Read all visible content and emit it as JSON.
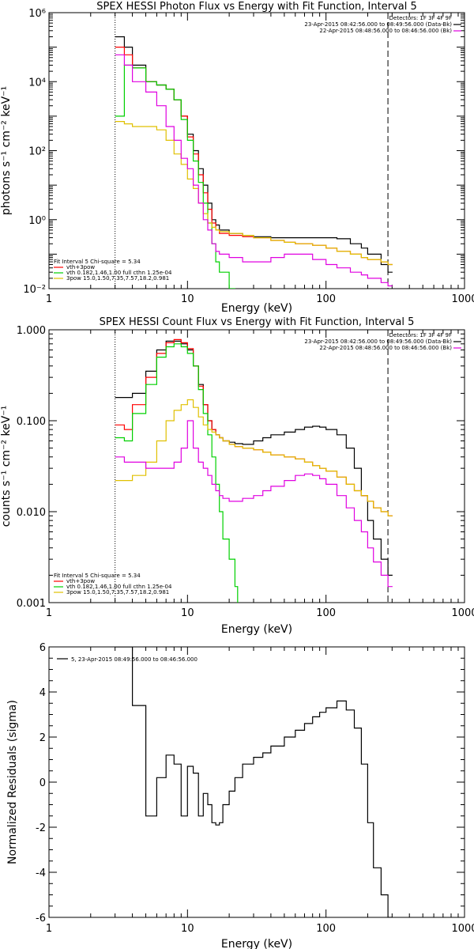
{
  "chart_data": [
    {
      "type": "line",
      "title": "SPEX HESSI Photon Flux vs Energy with Fit Function, Interval 5",
      "xlabel": "Energy (keV)",
      "ylabel": "photons s⁻¹ cm⁻² keV⁻¹",
      "xscale": "log",
      "yscale": "log",
      "xlim": [
        1,
        1000
      ],
      "ylim": [
        0.01,
        1000000
      ],
      "xticks": [
        {
          "v": 1,
          "label": "1"
        },
        {
          "v": 10,
          "label": "10"
        },
        {
          "v": 100,
          "label": "100"
        },
        {
          "v": 1000,
          "label": "1000"
        }
      ],
      "yticks": [
        {
          "v": 0.01,
          "label": "10⁻²"
        },
        {
          "v": 1,
          "label": "10⁰"
        },
        {
          "v": 100,
          "label": "10²"
        },
        {
          "v": 10000,
          "label": "10⁴"
        },
        {
          "v": 1000000,
          "label": "10⁶"
        }
      ],
      "vlines": [
        {
          "x": 3,
          "style": "dotted"
        },
        {
          "x": 280,
          "style": "dashed"
        }
      ],
      "header_lines": [
        "Detectors: 1F 3F 4F 9F",
        "23-Apr-2015 08:42:56.000 to 08:49:56.000 (Data-Bk)",
        "22-Apr-2015 08:48:56.000 to 08:46:56.000 (Bk)"
      ],
      "fit_lines": [
        "Fit Interval 5   Chi-square = 5.34",
        "vth+3pow",
        "vth 0.182,1.46,1.00  full cthn 1.25e-04",
        "3pow 15.0,1.50,7.35,7.57,18.2,0.981"
      ],
      "legend_position": "top-right",
      "series": [
        {
          "key": "data",
          "color": "#000000",
          "x": [
            3,
            3.5,
            4,
            5,
            6,
            7,
            8,
            9,
            10,
            11,
            12,
            13,
            14,
            15,
            16,
            17,
            20,
            25,
            30,
            40,
            50,
            60,
            80,
            100,
            120,
            150,
            180,
            200,
            250,
            280
          ],
          "y": [
            200000,
            100000,
            30000,
            10000,
            8000,
            6000,
            3000,
            1000,
            300,
            100,
            30,
            10,
            3,
            1,
            0.7,
            0.5,
            0.4,
            0.35,
            0.32,
            0.3,
            0.3,
            0.3,
            0.3,
            0.3,
            0.28,
            0.2,
            0.15,
            0.1,
            0.05,
            0.03
          ]
        },
        {
          "key": "fit_total",
          "color": "#ff0000",
          "x": [
            3,
            3.5,
            4,
            5,
            6,
            7,
            8,
            9,
            10,
            11,
            12,
            13,
            14,
            15,
            16,
            17,
            20,
            25,
            30,
            40,
            50,
            60,
            80,
            100,
            120,
            150,
            180,
            200,
            250,
            280
          ],
          "y": [
            100000,
            60000,
            25000,
            10000,
            8000,
            6000,
            3000,
            1000,
            250,
            80,
            20,
            6,
            2,
            0.8,
            0.5,
            0.4,
            0.35,
            0.32,
            0.3,
            0.25,
            0.22,
            0.2,
            0.18,
            0.15,
            0.12,
            0.1,
            0.08,
            0.07,
            0.06,
            0.05
          ]
        },
        {
          "key": "vth",
          "color": "#00d000",
          "x": [
            3,
            3.5,
            4,
            5,
            6,
            7,
            8,
            9,
            10,
            11,
            12,
            13,
            14,
            15,
            16,
            17,
            20,
            22
          ],
          "y": [
            1000,
            30000,
            25000,
            10000,
            8000,
            6000,
            3000,
            800,
            200,
            50,
            12,
            3,
            0.8,
            0.2,
            0.06,
            0.03,
            0.01,
            0.003
          ]
        },
        {
          "key": "3pow",
          "color": "#e0c000",
          "x": [
            3,
            3.5,
            4,
            5,
            6,
            7,
            8,
            9,
            10,
            11,
            12,
            13,
            14,
            15,
            16,
            17,
            20,
            25,
            30,
            40,
            50,
            60,
            80,
            100,
            120,
            150,
            180,
            200,
            250,
            280
          ],
          "y": [
            700,
            600,
            500,
            500,
            400,
            200,
            80,
            40,
            15,
            8,
            3,
            1.5,
            0.8,
            0.6,
            0.5,
            0.45,
            0.4,
            0.35,
            0.3,
            0.25,
            0.22,
            0.2,
            0.18,
            0.15,
            0.12,
            0.1,
            0.08,
            0.07,
            0.06,
            0.05
          ]
        },
        {
          "key": "background",
          "color": "#e000e0",
          "x": [
            3,
            3.5,
            4,
            5,
            6,
            7,
            8,
            9,
            10,
            11,
            12,
            13,
            14,
            15,
            16,
            17,
            20,
            25,
            30,
            40,
            50,
            60,
            80,
            100,
            120,
            150,
            180,
            200,
            250,
            280
          ],
          "y": [
            60000,
            30000,
            10000,
            5000,
            2000,
            500,
            200,
            60,
            30,
            10,
            3,
            1,
            0.5,
            0.2,
            0.12,
            0.1,
            0.08,
            0.06,
            0.06,
            0.08,
            0.1,
            0.1,
            0.07,
            0.05,
            0.04,
            0.03,
            0.025,
            0.02,
            0.015,
            0.012
          ]
        }
      ]
    },
    {
      "type": "line",
      "title": "SPEX HESSI Count Flux vs Energy with Fit Function, Interval 5",
      "xlabel": "Energy (keV)",
      "ylabel": "counts s⁻¹ cm⁻² keV⁻¹",
      "xscale": "log",
      "yscale": "log",
      "xlim": [
        1,
        1000
      ],
      "ylim": [
        0.001,
        1
      ],
      "xticks": [
        {
          "v": 1,
          "label": "1"
        },
        {
          "v": 10,
          "label": "10"
        },
        {
          "v": 100,
          "label": "100"
        },
        {
          "v": 1000,
          "label": "1000"
        }
      ],
      "yticks": [
        {
          "v": 0.001,
          "label": "0.001"
        },
        {
          "v": 0.01,
          "label": "0.010"
        },
        {
          "v": 0.1,
          "label": "0.100"
        },
        {
          "v": 1,
          "label": "1.000"
        }
      ],
      "vlines": [
        {
          "x": 3,
          "style": "dotted"
        },
        {
          "x": 280,
          "style": "dashed"
        }
      ],
      "header_lines": [
        "Detectors: 1F 3F 4F 9F",
        "23-Apr-2015 08:42:56.000 to 08:49:56.000 (Data-Bk)",
        "22-Apr-2015 08:48:56.000 to 08:46:56.000 (Bk)"
      ],
      "fit_lines": [
        "Fit Interval 5   Chi-square = 5.34",
        "vth+3pow",
        "vth 0.182,1.46,1.00  full cthn 1.25e-04",
        "3pow 15.0,1.50,7.35,7.57,18.2,0.981"
      ],
      "legend_position": "top-right",
      "series": [
        {
          "key": "data",
          "color": "#000000",
          "x": [
            3,
            3.5,
            4,
            5,
            6,
            7,
            8,
            9,
            10,
            11,
            12,
            13,
            14,
            15,
            16,
            17,
            18,
            20,
            22,
            25,
            30,
            35,
            40,
            50,
            60,
            70,
            80,
            90,
            100,
            120,
            140,
            160,
            180,
            200,
            220,
            250,
            280
          ],
          "y": [
            0.18,
            0.18,
            0.2,
            0.35,
            0.6,
            0.75,
            0.75,
            0.7,
            0.6,
            0.4,
            0.25,
            0.15,
            0.1,
            0.08,
            0.07,
            0.065,
            0.06,
            0.058,
            0.056,
            0.055,
            0.06,
            0.065,
            0.07,
            0.075,
            0.08,
            0.085,
            0.087,
            0.085,
            0.08,
            0.07,
            0.05,
            0.03,
            0.015,
            0.008,
            0.005,
            0.003,
            0.002
          ]
        },
        {
          "key": "fit_total",
          "color": "#ff0000",
          "x": [
            3,
            3.5,
            4,
            5,
            6,
            7,
            8,
            9,
            10,
            11,
            12,
            13,
            14,
            15,
            16,
            17,
            18,
            20,
            22,
            25,
            30,
            35,
            40,
            50,
            60,
            70,
            80,
            90,
            100,
            120,
            140,
            160,
            180,
            200,
            220,
            250,
            280
          ],
          "y": [
            0.09,
            0.08,
            0.15,
            0.3,
            0.55,
            0.72,
            0.78,
            0.72,
            0.62,
            0.4,
            0.24,
            0.15,
            0.1,
            0.08,
            0.07,
            0.065,
            0.06,
            0.055,
            0.052,
            0.05,
            0.048,
            0.045,
            0.042,
            0.04,
            0.038,
            0.035,
            0.032,
            0.03,
            0.028,
            0.024,
            0.02,
            0.017,
            0.015,
            0.013,
            0.011,
            0.01,
            0.009
          ]
        },
        {
          "key": "vth",
          "color": "#00d000",
          "x": [
            3,
            3.5,
            4,
            5,
            6,
            7,
            8,
            9,
            10,
            11,
            12,
            13,
            14,
            15,
            16,
            17,
            18,
            20,
            22,
            23
          ],
          "y": [
            0.065,
            0.06,
            0.12,
            0.25,
            0.5,
            0.65,
            0.7,
            0.65,
            0.55,
            0.4,
            0.22,
            0.12,
            0.07,
            0.04,
            0.02,
            0.01,
            0.005,
            0.003,
            0.0015,
            0.0008
          ]
        },
        {
          "key": "3pow",
          "color": "#e0c000",
          "x": [
            3,
            3.5,
            4,
            5,
            6,
            7,
            8,
            9,
            10,
            11,
            12,
            13,
            14,
            15,
            16,
            17,
            18,
            20,
            22,
            25,
            30,
            35,
            40,
            50,
            60,
            70,
            80,
            90,
            100,
            120,
            140,
            160,
            180,
            200,
            220,
            250,
            280
          ],
          "y": [
            0.022,
            0.022,
            0.025,
            0.035,
            0.06,
            0.1,
            0.13,
            0.15,
            0.17,
            0.14,
            0.11,
            0.09,
            0.08,
            0.075,
            0.07,
            0.065,
            0.06,
            0.055,
            0.052,
            0.05,
            0.048,
            0.045,
            0.042,
            0.04,
            0.038,
            0.035,
            0.032,
            0.03,
            0.028,
            0.024,
            0.02,
            0.017,
            0.015,
            0.013,
            0.011,
            0.01,
            0.009
          ]
        },
        {
          "key": "background",
          "color": "#e000e0",
          "x": [
            3,
            3.5,
            4,
            5,
            6,
            7,
            8,
            9,
            10,
            11,
            12,
            13,
            14,
            15,
            16,
            17,
            18,
            20,
            22,
            25,
            30,
            35,
            40,
            50,
            60,
            70,
            80,
            90,
            100,
            120,
            140,
            160,
            180,
            200,
            220,
            250,
            280
          ],
          "y": [
            0.04,
            0.035,
            0.035,
            0.03,
            0.03,
            0.03,
            0.035,
            0.05,
            0.1,
            0.05,
            0.035,
            0.03,
            0.025,
            0.02,
            0.017,
            0.015,
            0.014,
            0.013,
            0.013,
            0.014,
            0.015,
            0.017,
            0.019,
            0.022,
            0.025,
            0.026,
            0.025,
            0.023,
            0.02,
            0.015,
            0.011,
            0.008,
            0.006,
            0.004,
            0.0028,
            0.002,
            0.0015
          ]
        }
      ]
    },
    {
      "type": "line",
      "title": "",
      "xlabel": "Energy (keV)",
      "ylabel": "Normalized Residuals (sigma)",
      "xscale": "log",
      "yscale": "linear",
      "xlim": [
        1,
        1000
      ],
      "ylim": [
        -6,
        6
      ],
      "xticks": [
        {
          "v": 1,
          "label": "1"
        },
        {
          "v": 10,
          "label": "10"
        },
        {
          "v": 100,
          "label": "100"
        },
        {
          "v": 1000,
          "label": "1000"
        }
      ],
      "yticks": [
        {
          "v": -6,
          "label": "-6"
        },
        {
          "v": -4,
          "label": "-4"
        },
        {
          "v": -2,
          "label": "-2"
        },
        {
          "v": 0,
          "label": "0"
        },
        {
          "v": 2,
          "label": "2"
        },
        {
          "v": 4,
          "label": "4"
        },
        {
          "v": 6,
          "label": "6"
        }
      ],
      "legend": "5, 23-Apr-2015 08:49:56.000 to 08:46:56.000",
      "legend_position": "top-left",
      "series": [
        {
          "key": "residuals",
          "color": "#000000",
          "x": [
            3,
            3.5,
            4,
            5,
            6,
            7,
            8,
            9,
            10,
            11,
            12,
            13,
            14,
            15,
            16,
            17,
            18,
            20,
            22,
            25,
            30,
            35,
            40,
            50,
            60,
            70,
            80,
            90,
            100,
            120,
            140,
            160,
            180,
            200,
            220,
            250,
            280
          ],
          "y": [
            6,
            6,
            3.4,
            -1.5,
            0.2,
            1.2,
            0.8,
            -1.5,
            0.7,
            0.4,
            -1.5,
            -0.5,
            -1,
            -1.8,
            -1.9,
            -1.8,
            -1,
            -0.4,
            0.2,
            0.8,
            1.1,
            1.3,
            1.6,
            2,
            2.3,
            2.6,
            2.9,
            3.1,
            3.3,
            3.6,
            3.2,
            2.4,
            0.8,
            -1.8,
            -3.8,
            -5,
            -6
          ]
        }
      ]
    }
  ]
}
